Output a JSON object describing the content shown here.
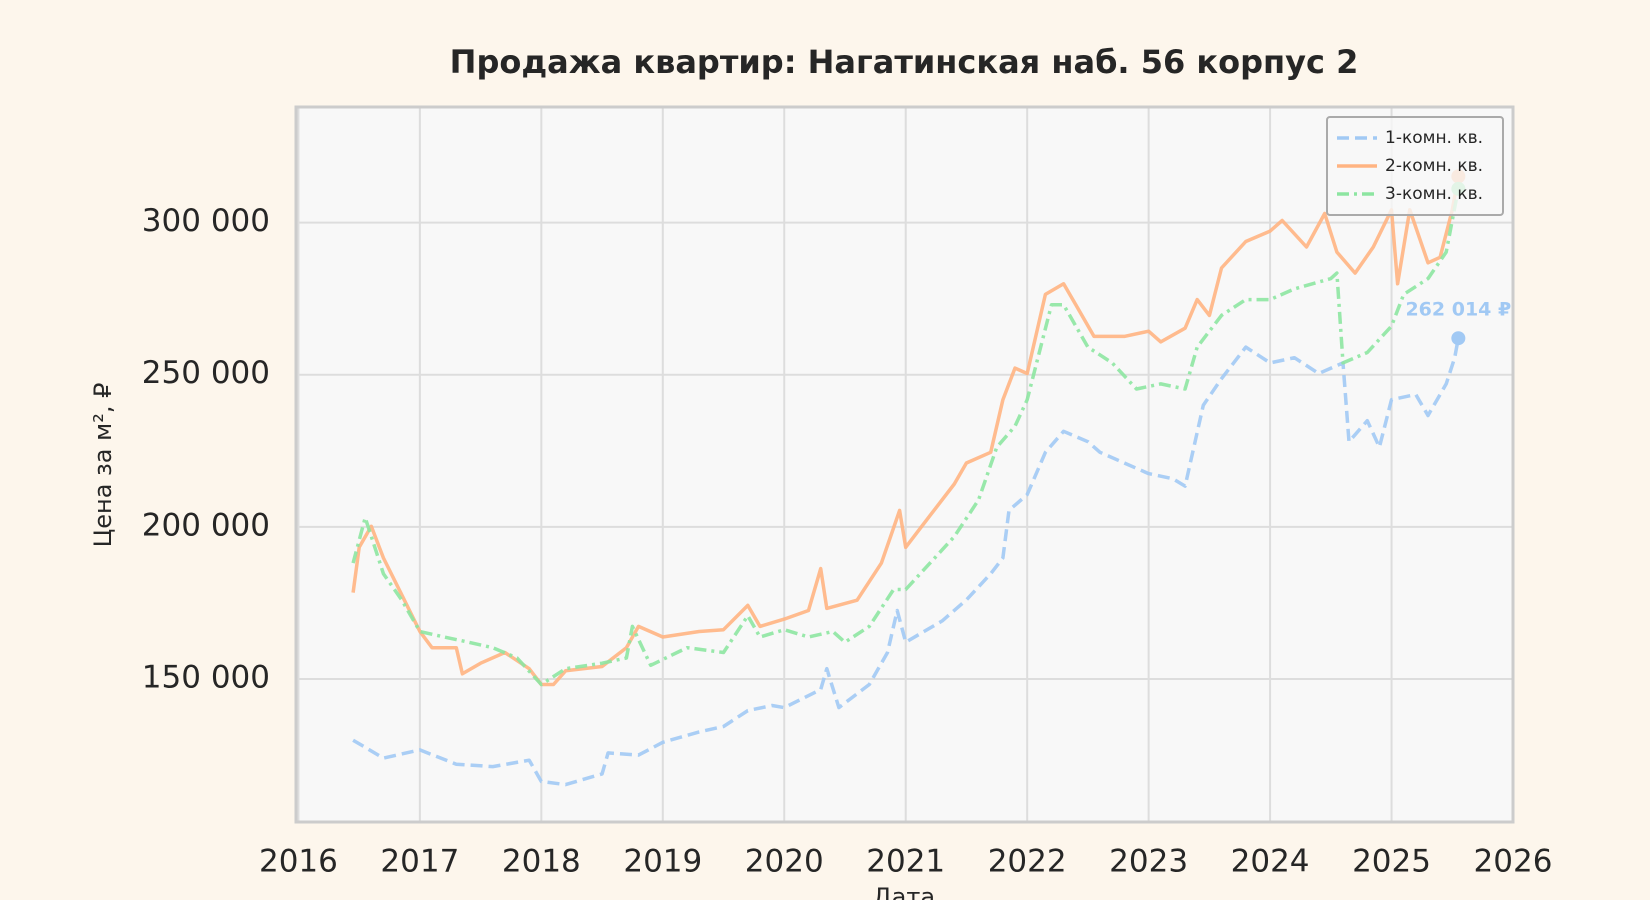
{
  "chart_data": {
    "type": "line",
    "title": "Продажа квартир: Нагатинская наб. 56 корпус 2",
    "x_label": "Дата",
    "y_label": "Цена за м², ₽",
    "xlim": [
      2015.98,
      2026.0
    ],
    "xticks": [
      2016,
      2017,
      2018,
      2019,
      2020,
      2021,
      2022,
      2023,
      2024,
      2025,
      2026
    ],
    "ylim": [
      103000,
      338000
    ],
    "yticks": [
      {
        "value": 150000,
        "label": "150 000"
      },
      {
        "value": 200000,
        "label": "200 000"
      },
      {
        "value": 250000,
        "label": "250 000"
      },
      {
        "value": 300000,
        "label": "300 000"
      }
    ],
    "grid": true,
    "legend": "upper right",
    "series": [
      {
        "name": "1-комн. кв.",
        "color": "#a1c9f4",
        "linestyle": "dashed",
        "x": [
          2016.45,
          2016.7,
          2017.0,
          2017.3,
          2017.6,
          2017.9,
          2018.0,
          2018.2,
          2018.5,
          2018.55,
          2018.8,
          2019.0,
          2019.3,
          2019.5,
          2019.7,
          2019.9,
          2020.0,
          2020.3,
          2020.35,
          2020.45,
          2020.7,
          2020.85,
          2020.93,
          2021.0,
          2021.3,
          2021.5,
          2021.7,
          2021.8,
          2021.85,
          2022.0,
          2022.15,
          2022.3,
          2022.5,
          2022.6,
          2022.8,
          2023.0,
          2023.2,
          2023.3,
          2023.45,
          2023.6,
          2023.8,
          2024.0,
          2024.2,
          2024.4,
          2024.6,
          2024.65,
          2024.8,
          2024.9,
          2025.0,
          2025.2,
          2025.3,
          2025.45,
          2025.52,
          2025.55
        ],
        "values": [
          129900,
          124000,
          126700,
          122000,
          121200,
          123300,
          116300,
          115300,
          118800,
          125700,
          125000,
          129200,
          132600,
          134400,
          139600,
          141300,
          140600,
          146500,
          153400,
          140600,
          148200,
          158700,
          172500,
          162100,
          169100,
          176000,
          184600,
          189800,
          205400,
          210600,
          224500,
          231400,
          228000,
          224500,
          221000,
          217500,
          215800,
          213400,
          240000,
          248700,
          259100,
          253900,
          255600,
          250400,
          253900,
          228000,
          234900,
          226200,
          241800,
          243500,
          236600,
          247000,
          255600,
          262014
        ],
        "last_value_label": "262 014 ₽"
      },
      {
        "name": "2-комн. кв.",
        "color": "#ffb482",
        "linestyle": "solid",
        "x": [
          2016.45,
          2016.5,
          2016.6,
          2016.7,
          2016.85,
          2017.0,
          2017.1,
          2017.3,
          2017.35,
          2017.5,
          2017.7,
          2017.9,
          2018.0,
          2018.1,
          2018.2,
          2018.5,
          2018.7,
          2018.8,
          2019.0,
          2019.3,
          2019.5,
          2019.7,
          2019.8,
          2020.0,
          2020.2,
          2020.3,
          2020.35,
          2020.6,
          2020.8,
          2020.95,
          2021.0,
          2021.2,
          2021.4,
          2021.5,
          2021.7,
          2021.8,
          2021.9,
          2022.0,
          2022.15,
          2022.3,
          2022.4,
          2022.55,
          2022.8,
          2023.0,
          2023.1,
          2023.3,
          2023.4,
          2023.5,
          2023.6,
          2023.8,
          2024.0,
          2024.1,
          2024.3,
          2024.45,
          2024.55,
          2024.7,
          2024.85,
          2025.0,
          2025.05,
          2025.15,
          2025.3,
          2025.4,
          2025.5,
          2025.55
        ],
        "values": [
          178400,
          193300,
          200200,
          189800,
          177700,
          165600,
          160300,
          160300,
          151700,
          155200,
          158700,
          153400,
          148200,
          148200,
          152700,
          154100,
          160300,
          167300,
          163800,
          165600,
          166200,
          174200,
          167300,
          169700,
          172500,
          186300,
          173200,
          175900,
          188100,
          205400,
          193300,
          203700,
          214100,
          221000,
          224500,
          241800,
          252200,
          250400,
          276400,
          279900,
          273000,
          262600,
          262600,
          264300,
          260800,
          265300,
          274700,
          269500,
          285100,
          293800,
          297200,
          300700,
          292000,
          303000,
          290300,
          283400,
          292000,
          304200,
          279900,
          304200,
          286800,
          288600,
          304200,
          315200
        ]
      },
      {
        "name": "3-комн. кв.",
        "color": "#8de5a1",
        "linestyle": "dashdot",
        "x": [
          2016.45,
          2016.55,
          2016.7,
          2016.85,
          2017.0,
          2017.2,
          2017.4,
          2017.6,
          2017.8,
          2018.0,
          2018.2,
          2018.5,
          2018.7,
          2018.75,
          2018.9,
          2019.2,
          2019.5,
          2019.7,
          2019.8,
          2020.0,
          2020.2,
          2020.4,
          2020.5,
          2020.7,
          2020.9,
          2021.0,
          2021.2,
          2021.4,
          2021.6,
          2021.75,
          2021.9,
          2022.0,
          2022.2,
          2022.3,
          2022.5,
          2022.7,
          2022.9,
          2023.1,
          2023.3,
          2023.4,
          2023.6,
          2023.8,
          2024.0,
          2024.2,
          2024.5,
          2024.55,
          2024.6,
          2024.8,
          2025.0,
          2025.1,
          2025.3,
          2025.45,
          2025.55
        ],
        "values": [
          188100,
          203000,
          184600,
          176000,
          165600,
          163800,
          162100,
          160300,
          156900,
          148200,
          153400,
          155200,
          156900,
          167300,
          154500,
          160300,
          158700,
          170800,
          163800,
          166200,
          163800,
          165600,
          162100,
          167300,
          179400,
          179400,
          188100,
          196800,
          208900,
          226200,
          233100,
          241800,
          273000,
          273000,
          259100,
          253900,
          245300,
          247000,
          245300,
          259100,
          269500,
          274700,
          274700,
          278200,
          281600,
          283400,
          253900,
          257300,
          266000,
          276400,
          281600,
          290300,
          311100
        ]
      }
    ]
  }
}
